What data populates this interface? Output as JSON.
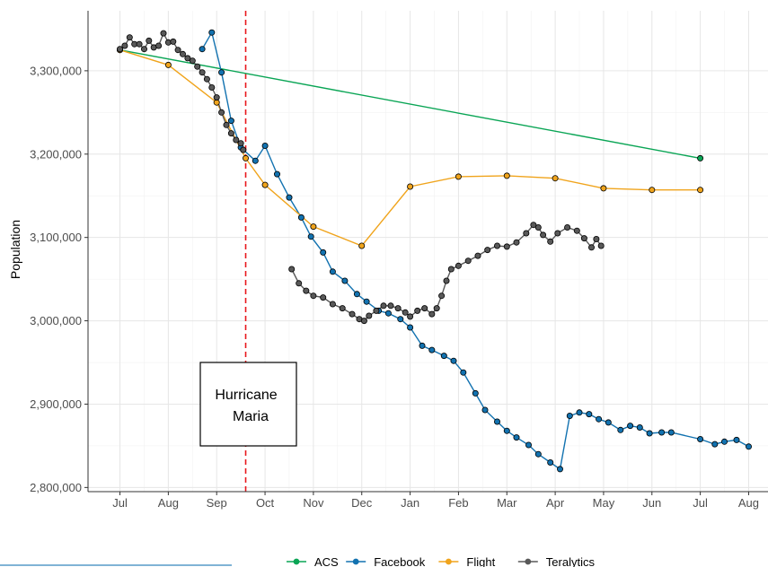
{
  "chart_data": {
    "type": "line",
    "ylabel": "Population",
    "xlabel": "",
    "ylim": [
      2795000,
      3372000
    ],
    "y_ticks": [
      2800000,
      2900000,
      3000000,
      3100000,
      3200000,
      3300000
    ],
    "y_tick_labels": [
      "2,800,000",
      "2,900,000",
      "3,000,000",
      "3,100,000",
      "3,200,000",
      "3,300,000"
    ],
    "x_tick_labels": [
      "Jul",
      "Aug",
      "Sep",
      "Oct",
      "Nov",
      "Dec",
      "Jan",
      "Feb",
      "Mar",
      "Apr",
      "May",
      "Jun",
      "Jul",
      "Aug"
    ],
    "xlim": [
      -0.66,
      13.4
    ],
    "hurricane_line_x": 2.6,
    "annotation": {
      "line1": "Hurricane",
      "line2": "Maria"
    },
    "grid": true,
    "legend_position": "bottom",
    "series": [
      {
        "name": "ACS",
        "color": "#0aa555",
        "points": [
          [
            0.0,
            3325000
          ],
          [
            12.0,
            3195000
          ]
        ]
      },
      {
        "name": "Facebook",
        "color": "#1272b0",
        "points": [
          [
            1.7,
            3326000
          ],
          [
            1.9,
            3346000
          ],
          [
            2.1,
            3298000
          ],
          [
            2.3,
            3240000
          ],
          [
            2.5,
            3208000
          ],
          [
            2.8,
            3192000
          ],
          [
            3.0,
            3210000
          ],
          [
            3.25,
            3176000
          ],
          [
            3.5,
            3148000
          ],
          [
            3.75,
            3124000
          ],
          [
            3.95,
            3101000
          ],
          [
            4.2,
            3082000
          ],
          [
            4.4,
            3059000
          ],
          [
            4.65,
            3048000
          ],
          [
            4.9,
            3032000
          ],
          [
            5.1,
            3023000
          ],
          [
            5.35,
            3012000
          ],
          [
            5.55,
            3009000
          ],
          [
            5.8,
            3002000
          ],
          [
            6.0,
            2992000
          ],
          [
            6.25,
            2970000
          ],
          [
            6.45,
            2965000
          ],
          [
            6.7,
            2958000
          ],
          [
            6.9,
            2952000
          ],
          [
            7.1,
            2938000
          ],
          [
            7.35,
            2913000
          ],
          [
            7.55,
            2893000
          ],
          [
            7.8,
            2879000
          ],
          [
            8.0,
            2868000
          ],
          [
            8.2,
            2860000
          ],
          [
            8.45,
            2851000
          ],
          [
            8.65,
            2840000
          ],
          [
            8.9,
            2830000
          ],
          [
            9.1,
            2822000
          ],
          [
            9.3,
            2886000
          ],
          [
            9.5,
            2890000
          ],
          [
            9.7,
            2888000
          ],
          [
            9.9,
            2882000
          ],
          [
            10.1,
            2878000
          ],
          [
            10.35,
            2869000
          ],
          [
            10.55,
            2874000
          ],
          [
            10.75,
            2872000
          ],
          [
            10.95,
            2865000
          ],
          [
            11.2,
            2866000
          ],
          [
            11.4,
            2866000
          ],
          [
            12.0,
            2858000
          ],
          [
            12.3,
            2852000
          ],
          [
            12.5,
            2855000
          ],
          [
            12.75,
            2857000
          ],
          [
            13.0,
            2849000
          ]
        ]
      },
      {
        "name": "Flight",
        "color": "#f0a41c",
        "points": [
          [
            0.0,
            3325000
          ],
          [
            1.0,
            3307000
          ],
          [
            2.0,
            3262000
          ],
          [
            2.6,
            3195000
          ],
          [
            3.0,
            3163000
          ],
          [
            4.0,
            3113000
          ],
          [
            5.0,
            3090000
          ],
          [
            6.0,
            3161000
          ],
          [
            7.0,
            3173000
          ],
          [
            8.0,
            3174000
          ],
          [
            9.0,
            3171000
          ],
          [
            10.0,
            3159000
          ],
          [
            11.0,
            3157000
          ],
          [
            12.0,
            3157000
          ]
        ]
      },
      {
        "name": "Teralytics",
        "color": "#595959",
        "segments": [
          [
            [
              0.0,
              3326000
            ],
            [
              0.1,
              3330000
            ],
            [
              0.2,
              3340000
            ],
            [
              0.3,
              3332000
            ],
            [
              0.4,
              3332000
            ],
            [
              0.5,
              3326000
            ],
            [
              0.6,
              3336000
            ],
            [
              0.7,
              3328000
            ],
            [
              0.8,
              3330000
            ],
            [
              0.9,
              3345000
            ],
            [
              1.0,
              3334000
            ],
            [
              1.1,
              3335000
            ],
            [
              1.2,
              3325000
            ],
            [
              1.3,
              3320000
            ],
            [
              1.4,
              3315000
            ],
            [
              1.5,
              3312000
            ],
            [
              1.6,
              3305000
            ],
            [
              1.7,
              3298000
            ],
            [
              1.8,
              3290000
            ],
            [
              1.9,
              3280000
            ],
            [
              2.0,
              3268000
            ],
            [
              2.1,
              3250000
            ],
            [
              2.2,
              3235000
            ],
            [
              2.3,
              3225000
            ],
            [
              2.4,
              3217000
            ],
            [
              2.5,
              3213000
            ],
            [
              2.55,
              3205000
            ]
          ],
          [
            [
              3.55,
              3062000
            ],
            [
              3.7,
              3045000
            ],
            [
              3.85,
              3036000
            ],
            [
              4.0,
              3030000
            ],
            [
              4.2,
              3028000
            ],
            [
              4.4,
              3020000
            ],
            [
              4.6,
              3015000
            ],
            [
              4.8,
              3008000
            ],
            [
              4.95,
              3002000
            ],
            [
              5.05,
              3000000
            ],
            [
              5.15,
              3006000
            ],
            [
              5.3,
              3012000
            ],
            [
              5.45,
              3018000
            ],
            [
              5.6,
              3018000
            ],
            [
              5.75,
              3015000
            ],
            [
              5.9,
              3010000
            ],
            [
              6.0,
              3005000
            ],
            [
              6.15,
              3012000
            ],
            [
              6.3,
              3015000
            ],
            [
              6.45,
              3008000
            ],
            [
              6.55,
              3015000
            ],
            [
              6.65,
              3030000
            ],
            [
              6.75,
              3048000
            ],
            [
              6.85,
              3062000
            ],
            [
              7.0,
              3066000
            ],
            [
              7.2,
              3072000
            ],
            [
              7.4,
              3078000
            ],
            [
              7.6,
              3085000
            ],
            [
              7.8,
              3090000
            ],
            [
              8.0,
              3089000
            ],
            [
              8.2,
              3094000
            ],
            [
              8.4,
              3105000
            ],
            [
              8.55,
              3115000
            ],
            [
              8.65,
              3112000
            ],
            [
              8.75,
              3103000
            ],
            [
              8.9,
              3095000
            ],
            [
              9.05,
              3105000
            ],
            [
              9.25,
              3112000
            ],
            [
              9.45,
              3108000
            ],
            [
              9.6,
              3099000
            ],
            [
              9.75,
              3088000
            ],
            [
              9.85,
              3098000
            ],
            [
              9.95,
              3090000
            ]
          ]
        ]
      }
    ]
  }
}
